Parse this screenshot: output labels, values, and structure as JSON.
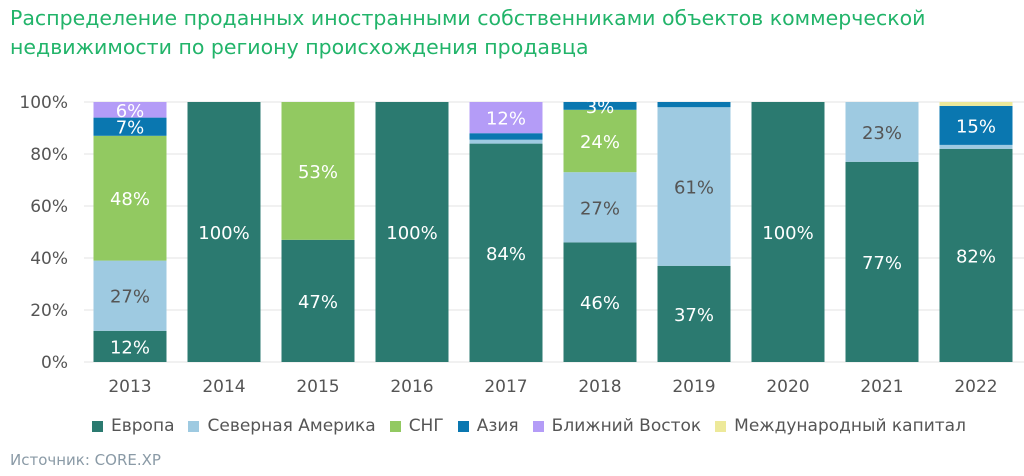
{
  "title": "Распределение проданных иностранными собственниками объектов коммерческой недвижимости по региону происхождения продавца",
  "source": "Источник: CORE.XP",
  "chart_data": {
    "type": "bar",
    "stacked": true,
    "title": "Распределение проданных иностранными собственниками объектов коммерческой недвижимости по региону происхождения продавца",
    "xlabel": "",
    "ylabel": "",
    "ylim": [
      0,
      100
    ],
    "yticks": [
      "0%",
      "20%",
      "40%",
      "60%",
      "80%",
      "100%"
    ],
    "grid": true,
    "legend_position": "bottom",
    "categories": [
      "2013",
      "2014",
      "2015",
      "2016",
      "2017",
      "2018",
      "2019",
      "2020",
      "2021",
      "2022"
    ],
    "series": [
      {
        "name": "Европа",
        "color": "#2b7a70",
        "label_color": "#ffffff",
        "values": [
          12,
          100,
          47,
          100,
          84,
          46,
          37,
          100,
          77,
          82
        ],
        "labels": [
          "12%",
          "100%",
          "47%",
          "100%",
          "84%",
          "46%",
          "37%",
          "100%",
          "77%",
          "82%"
        ]
      },
      {
        "name": "Северная Америка",
        "color": "#9ecae1",
        "label_color": "#555555",
        "values": [
          27,
          0,
          0,
          0,
          1.5,
          27,
          61,
          0,
          23,
          1.5
        ],
        "labels": [
          "27%",
          "",
          "",
          "",
          "",
          "27%",
          "61%",
          "",
          "23%",
          ""
        ]
      },
      {
        "name": "СНГ",
        "color": "#92c961",
        "label_color": "#ffffff",
        "values": [
          48,
          0,
          53,
          0,
          0,
          24,
          0,
          0,
          0,
          0
        ],
        "labels": [
          "48%",
          "",
          "53%",
          "",
          "",
          "24%",
          "",
          "",
          "",
          ""
        ]
      },
      {
        "name": "Азия",
        "color": "#0a77b0",
        "label_color": "#ffffff",
        "values": [
          7,
          0,
          0,
          0,
          2.5,
          3,
          2,
          0,
          0,
          15
        ],
        "labels": [
          "7%",
          "",
          "",
          "",
          "",
          "3%",
          "",
          "",
          "",
          "15%"
        ]
      },
      {
        "name": "Ближний Восток",
        "color": "#b49cf7",
        "label_color": "#ffffff",
        "values": [
          6,
          0,
          0,
          0,
          12,
          0,
          0,
          0,
          0,
          0
        ],
        "labels": [
          "6%",
          "",
          "",
          "",
          "12%",
          "",
          "",
          "",
          "",
          ""
        ]
      },
      {
        "name": "Международный капитал",
        "color": "#ede99a",
        "label_color": "#555555",
        "values": [
          0,
          0,
          0,
          0,
          0,
          0,
          0,
          0,
          0,
          1.5
        ],
        "labels": [
          "",
          "",
          "",
          "",
          "",
          "",
          "",
          "",
          "",
          ""
        ]
      }
    ]
  }
}
